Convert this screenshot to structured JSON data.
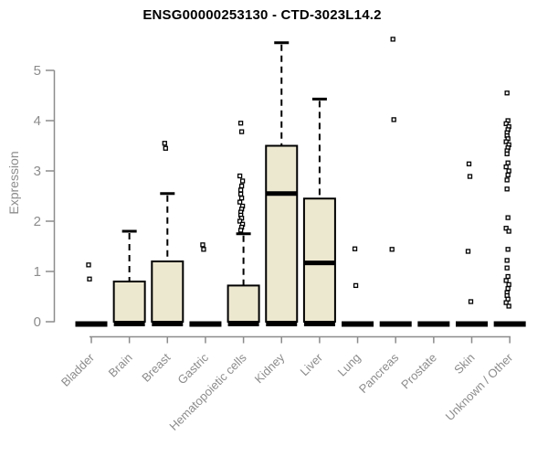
{
  "page": {
    "background": "#ffffff"
  },
  "chart_data": {
    "type": "boxplot",
    "title": "ENSG00000253130 - CTD-3023L14.2",
    "xlabel": "",
    "ylabel": "Expression",
    "ylim": [
      0,
      5.8
    ],
    "yticks": [
      0,
      1,
      2,
      3,
      4,
      5
    ],
    "grid": false,
    "legend_position": "none",
    "colors": {
      "box_fill": "#ece7cf",
      "box_stroke": "#000000",
      "median": "#000000",
      "whisker": "#000000",
      "outlier_stroke": "#000000",
      "outlier_fill": "#ffffff",
      "axis": "#8c8c8c",
      "title_color": "#000000"
    },
    "categories": [
      "Bladder",
      "Brain",
      "Breast",
      "Gastric",
      "Hematopoietic cells",
      "Kidney",
      "Liver",
      "Lung",
      "Pancreas",
      "Prostate",
      "Skin",
      "Unknown / Other"
    ],
    "boxes": [
      {
        "category": "Bladder",
        "shape": "flat",
        "median": 0,
        "outliers": [
          1.13,
          0.85
        ]
      },
      {
        "category": "Brain",
        "shape": "box",
        "q1": 0,
        "median": 0,
        "q3": 0.8,
        "whisker_low": 0,
        "whisker_high": 1.8,
        "outliers": []
      },
      {
        "category": "Breast",
        "shape": "box",
        "q1": 0,
        "median": 0,
        "q3": 1.2,
        "whisker_low": 0,
        "whisker_high": 2.55,
        "outliers": [
          3.55,
          3.45
        ]
      },
      {
        "category": "Gastric",
        "shape": "flat",
        "median": 0,
        "outliers": [
          1.53,
          1.44
        ]
      },
      {
        "category": "Hematopoietic cells",
        "shape": "box",
        "q1": 0,
        "median": 0,
        "q3": 0.72,
        "whisker_low": 0,
        "whisker_high": 1.75,
        "outliers": [
          3.95,
          3.78,
          2.9,
          2.8,
          2.7,
          2.62,
          2.54,
          2.46,
          2.38,
          2.3,
          2.24,
          2.18,
          2.12,
          2.06,
          2.0,
          1.94,
          1.88,
          1.82
        ]
      },
      {
        "category": "Kidney",
        "shape": "box",
        "q1": 0,
        "median": 2.55,
        "q3": 3.5,
        "whisker_low": 0,
        "whisker_high": 5.55,
        "outliers": []
      },
      {
        "category": "Liver",
        "shape": "box",
        "q1": 0,
        "median": 1.17,
        "q3": 2.45,
        "whisker_low": 0,
        "whisker_high": 4.43,
        "outliers": []
      },
      {
        "category": "Lung",
        "shape": "flat",
        "median": 0,
        "outliers": [
          1.45,
          0.72
        ]
      },
      {
        "category": "Pancreas",
        "shape": "flat",
        "median": 0,
        "outliers": [
          5.62,
          4.02,
          1.44
        ]
      },
      {
        "category": "Prostate",
        "shape": "flat",
        "median": 0,
        "outliers": []
      },
      {
        "category": "Skin",
        "shape": "flat",
        "median": 0,
        "outliers": [
          3.14,
          2.89,
          1.4,
          0.4
        ]
      },
      {
        "category": "Unknown / Other",
        "shape": "flat",
        "median": 0,
        "outliers": [
          4.55,
          4.0,
          3.94,
          3.88,
          3.82,
          3.76,
          3.7,
          3.64,
          3.58,
          3.52,
          3.46,
          3.4,
          3.34,
          3.16,
          3.08,
          3.0,
          2.92,
          2.82,
          2.64,
          2.07,
          1.86,
          1.8,
          1.44,
          1.22,
          1.07,
          0.9,
          0.82,
          0.74,
          0.66,
          0.58,
          0.52,
          0.45,
          0.38,
          0.31
        ]
      }
    ]
  }
}
